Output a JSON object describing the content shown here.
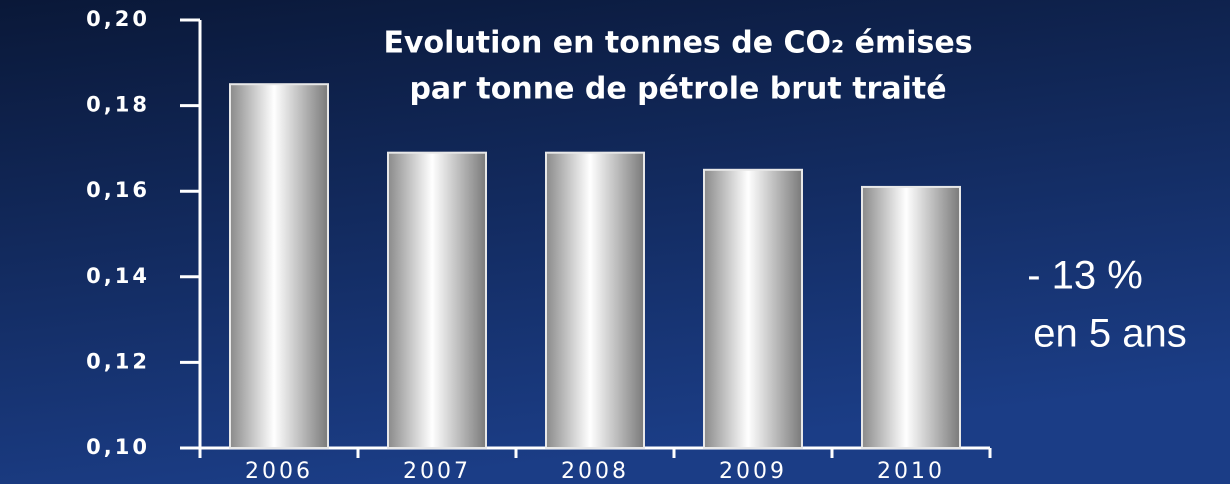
{
  "chart_data": {
    "type": "bar",
    "title": [
      "Evolution en tonnes de CO₂ émises",
      "par tonne de pétrole brut traité"
    ],
    "annotation": [
      "- 13 %",
      "en 5 ans"
    ],
    "categories": [
      "2006",
      "2007",
      "2008",
      "2009",
      "2010"
    ],
    "values": [
      0.185,
      0.169,
      0.169,
      0.165,
      0.161
    ],
    "ylim": [
      0.1,
      0.2
    ],
    "yticks": [
      {
        "value": 0.1,
        "label": "0,10"
      },
      {
        "value": 0.12,
        "label": "0,12"
      },
      {
        "value": 0.14,
        "label": "0,14"
      },
      {
        "value": 0.16,
        "label": "0,16"
      },
      {
        "value": 0.18,
        "label": "0,18"
      },
      {
        "value": 0.2,
        "label": "0,20"
      }
    ]
  }
}
